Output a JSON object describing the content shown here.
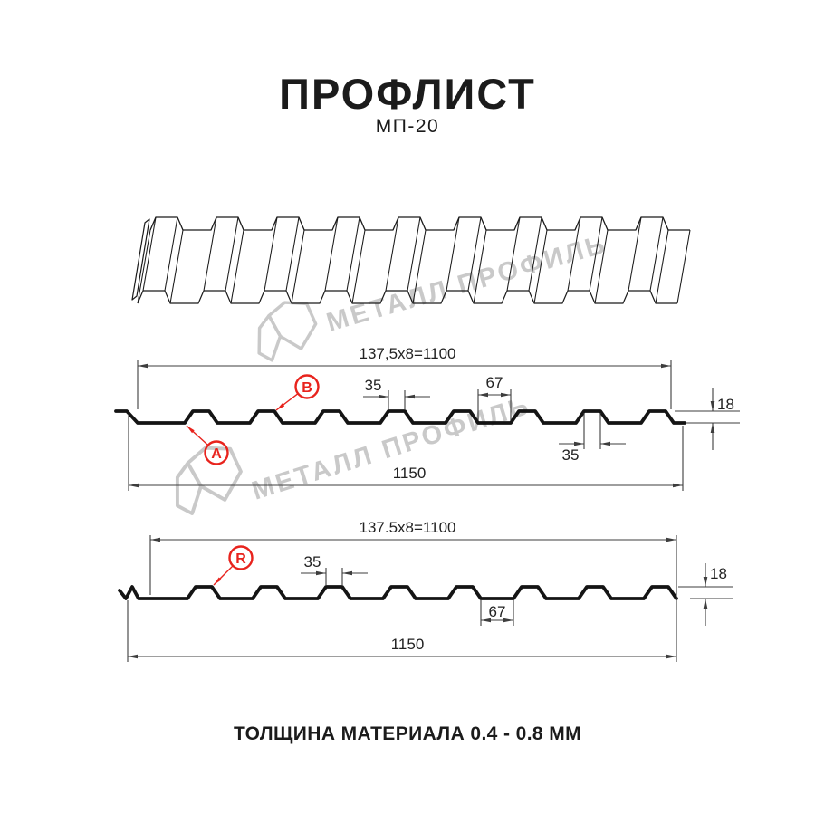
{
  "header": {
    "title": "ПРОФЛИСТ",
    "subtitle": "МП-20"
  },
  "footer": {
    "text": "ТОЛЩИНА МАТЕРИАЛА 0.4 - 0.8 ММ"
  },
  "watermark": {
    "brand_text": "МЕТАЛЛ ПРОФИЛЬ",
    "color": "#c9c9c9"
  },
  "colors": {
    "line": "#1a1a1a",
    "profile": "#141414",
    "dim": "#3d3d3d",
    "text": "#222222",
    "accent_red": "#e8231d"
  },
  "profile_spec": {
    "name": "МП-20",
    "pitch_mm": 137.5,
    "pitch_count": 8,
    "useful_width_mm": 1100,
    "full_width_mm": 1150,
    "rib_top_mm": 35,
    "valley_mm": 67,
    "height_mm": 18,
    "thickness_range_mm": "0.4 - 0.8"
  },
  "sections": [
    {
      "variant": "wall",
      "top_dim": "137,5x8=1100",
      "bottom_dim": "1150",
      "dim_rib_top": "35",
      "dim_valley": "67",
      "dim_rib_top_2": "35",
      "dim_height": "18",
      "callouts": [
        {
          "letter": "B"
        },
        {
          "letter": "A"
        }
      ]
    },
    {
      "variant": "roof",
      "top_dim": "137.5x8=1100",
      "bottom_dim": "1150",
      "dim_rib_top": "35",
      "dim_valley": "67",
      "dim_height": "18",
      "callouts": [
        {
          "letter": "R"
        }
      ]
    }
  ]
}
